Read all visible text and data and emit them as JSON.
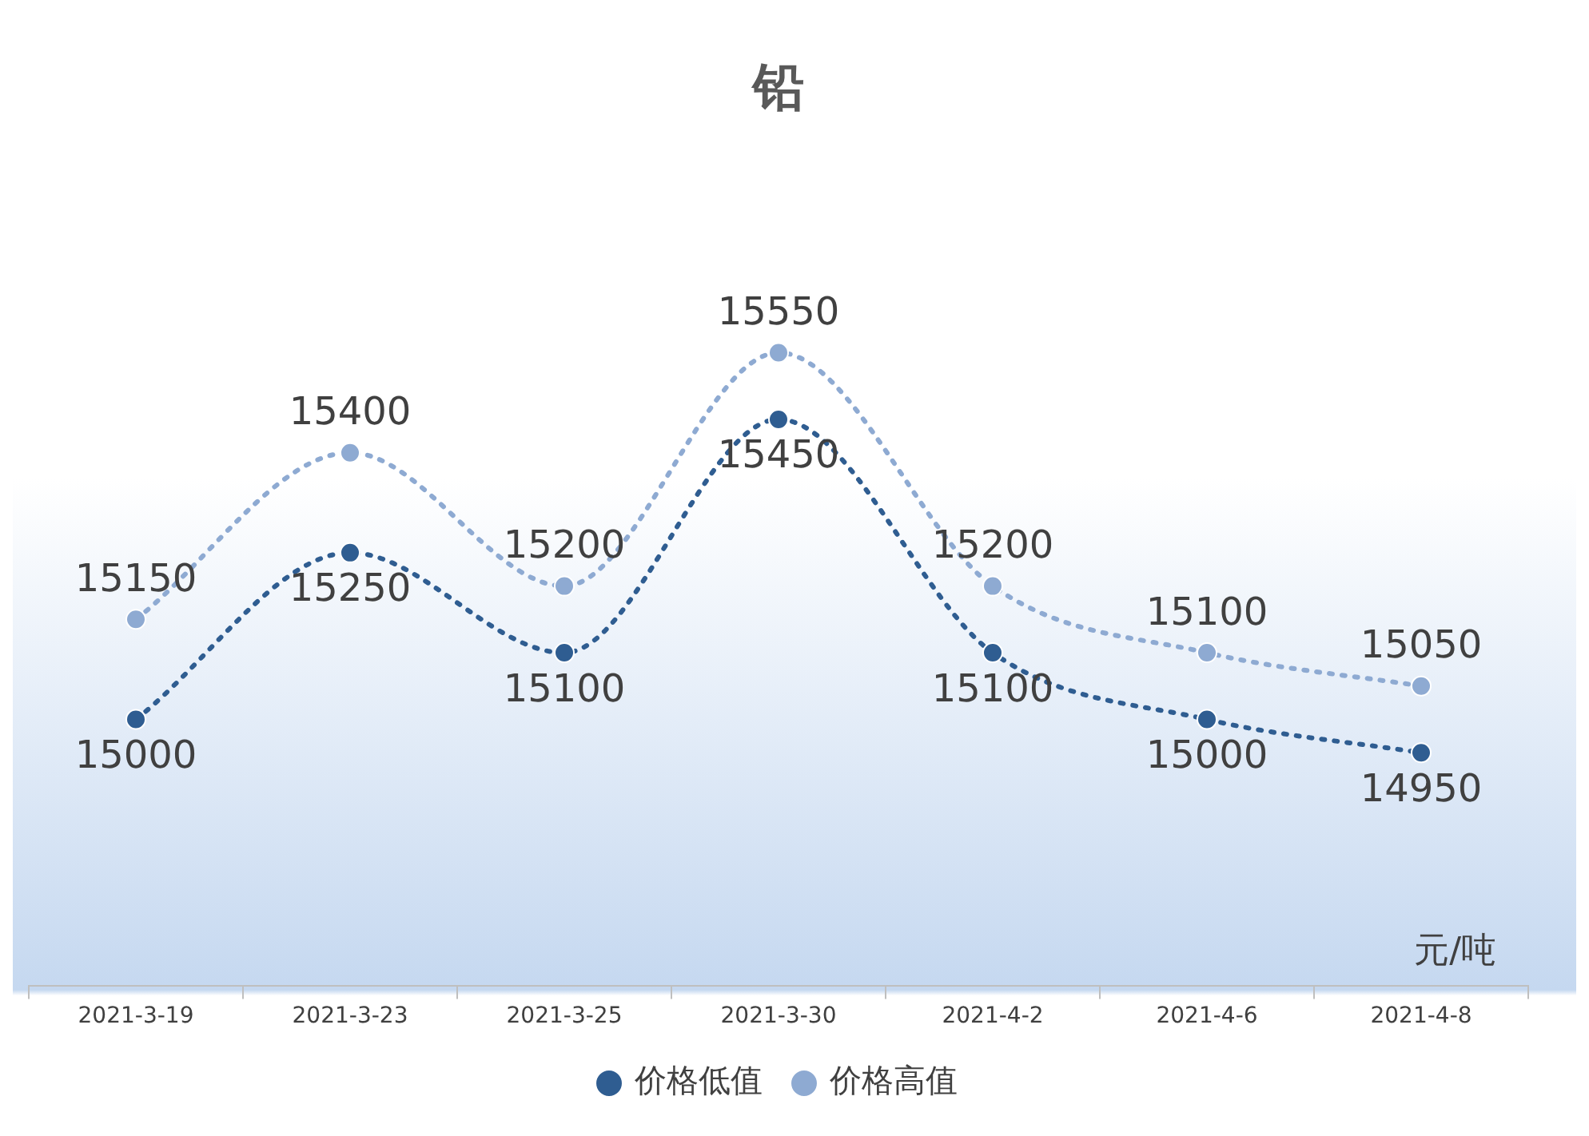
{
  "chart_data": {
    "type": "line",
    "title": "铅",
    "categories": [
      "2021-3-19",
      "2021-3-23",
      "2021-3-25",
      "2021-3-30",
      "2021-4-2",
      "2021-4-6",
      "2021-4-8"
    ],
    "series": [
      {
        "name": "价格低值",
        "color": "#2f5d91",
        "values": [
          15000,
          15250,
          15100,
          15450,
          15100,
          15000,
          14950
        ]
      },
      {
        "name": "价格高值",
        "color": "#8eaad2",
        "values": [
          15150,
          15400,
          15200,
          15550,
          15200,
          15100,
          15050
        ]
      }
    ],
    "data_labels": true,
    "legend": "bottom",
    "grid": false,
    "marker": "circle",
    "line_style": "dotted",
    "annotations": [
      "元/吨"
    ]
  }
}
